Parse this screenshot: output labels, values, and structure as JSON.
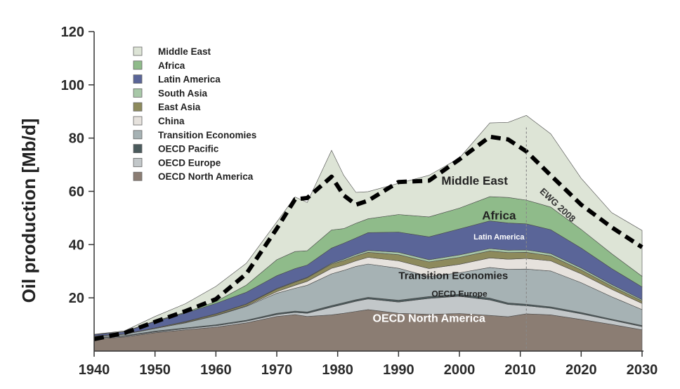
{
  "chart_data": {
    "type": "area",
    "stacked": true,
    "title": "",
    "xlabel": "",
    "ylabel": "Oil production [Mb/d]",
    "xlim": [
      1940,
      2030
    ],
    "ylim": [
      0,
      120
    ],
    "xticks": [
      1940,
      1950,
      1960,
      1970,
      1980,
      1990,
      2000,
      2010,
      2020,
      2030
    ],
    "yticks": [
      20,
      40,
      60,
      80,
      100,
      120
    ],
    "grid": false,
    "legend_position": "top-left",
    "x": [
      1940,
      1945,
      1950,
      1955,
      1960,
      1965,
      1970,
      1973,
      1975,
      1979,
      1981,
      1983,
      1985,
      1990,
      1995,
      2000,
      2005,
      2008,
      2011,
      2015,
      2020,
      2025,
      2030
    ],
    "series": [
      {
        "name": "OECD North America",
        "color": "#8b7d73",
        "values": [
          4.5,
          5.3,
          6.9,
          8.0,
          9.0,
          10.6,
          13.0,
          13.7,
          13.0,
          13.6,
          14.2,
          14.9,
          15.6,
          14.2,
          13.8,
          14.1,
          13.4,
          12.9,
          14.0,
          13.6,
          11.9,
          10.0,
          8.0
        ]
      },
      {
        "name": "OECD Europe",
        "color": "#c2c7c9",
        "values": [
          0.3,
          0.3,
          0.3,
          0.4,
          0.5,
          0.6,
          0.7,
          0.8,
          1.2,
          2.9,
          3.4,
          3.8,
          4.0,
          4.2,
          6.0,
          6.5,
          5.8,
          4.6,
          3.0,
          2.5,
          2.1,
          1.6,
          1.2
        ]
      },
      {
        "name": "OECD Pacific",
        "color": "#4a5a5c",
        "values": [
          0.2,
          0.2,
          0.3,
          0.3,
          0.4,
          0.4,
          0.5,
          0.5,
          0.5,
          0.6,
          0.6,
          0.6,
          0.6,
          0.7,
          0.7,
          0.7,
          0.7,
          0.6,
          0.6,
          0.5,
          0.5,
          0.4,
          0.4
        ]
      },
      {
        "name": "Transition Economies",
        "color": "#a6b2b4",
        "values": [
          0.5,
          0.5,
          1.0,
          1.9,
          3.4,
          5.2,
          7.5,
          8.6,
          10.0,
          11.9,
          12.1,
          12.5,
          12.5,
          12.0,
          7.5,
          8.1,
          11.5,
          12.6,
          13.2,
          13.5,
          11.2,
          8.4,
          6.0
        ]
      },
      {
        "name": "China",
        "color": "#e6e2dd",
        "values": [
          0.0,
          0.0,
          0.0,
          0.1,
          0.1,
          0.2,
          0.6,
          1.1,
          1.5,
          2.1,
          2.0,
          2.1,
          2.5,
          2.8,
          3.0,
          3.2,
          3.6,
          3.8,
          4.0,
          3.8,
          3.3,
          2.8,
          2.3
        ]
      },
      {
        "name": "East Asia",
        "color": "#8d8a5c",
        "values": [
          0.2,
          0.1,
          0.2,
          0.3,
          0.5,
          0.6,
          1.0,
          1.2,
          1.3,
          1.6,
          1.7,
          1.8,
          1.9,
          2.3,
          2.5,
          2.6,
          2.6,
          2.5,
          2.3,
          1.9,
          1.5,
          1.2,
          0.9
        ]
      },
      {
        "name": "South Asia",
        "color": "#a8c8a8",
        "values": [
          0.0,
          0.0,
          0.0,
          0.1,
          0.1,
          0.1,
          0.2,
          0.2,
          0.2,
          0.3,
          0.5,
          0.6,
          0.7,
          0.9,
          0.8,
          0.9,
          0.9,
          0.9,
          0.9,
          0.8,
          0.7,
          0.6,
          0.5
        ]
      },
      {
        "name": "Latin America",
        "color": "#5a6598",
        "values": [
          0.5,
          0.8,
          2.4,
          3.2,
          3.9,
          4.4,
          4.8,
          4.9,
          4.6,
          5.7,
          6.0,
          6.2,
          6.7,
          7.6,
          8.6,
          9.8,
          10.4,
          10.2,
          9.8,
          9.0,
          7.5,
          6.0,
          4.8
        ]
      },
      {
        "name": "Africa",
        "color": "#8fbb8a",
        "values": [
          0.0,
          0.1,
          0.2,
          0.3,
          0.7,
          2.7,
          6.0,
          6.4,
          5.4,
          6.8,
          5.5,
          5.5,
          5.2,
          6.6,
          7.5,
          7.8,
          9.1,
          9.6,
          8.9,
          8.5,
          7.0,
          5.6,
          4.0
        ]
      },
      {
        "name": "Middle East",
        "color": "#dde4d6",
        "values": [
          0.1,
          0.3,
          1.7,
          3.2,
          5.7,
          8.2,
          14.2,
          20.5,
          18.1,
          29.9,
          20.0,
          11.6,
          10.2,
          11.7,
          15.6,
          18.8,
          27.7,
          28.2,
          31.8,
          27.5,
          19.2,
          15.4,
          17.2
        ]
      }
    ],
    "reference_line": {
      "name": "EWG 2008",
      "x": [
        1940,
        1945,
        1950,
        1955,
        1960,
        1965,
        1970,
        1973,
        1975,
        1979,
        1981,
        1983,
        1985,
        1990,
        1995,
        2000,
        2005,
        2008,
        2011,
        2015,
        2020,
        2025,
        2030
      ],
      "y": [
        4.5,
        6.8,
        11.0,
        15.0,
        19.5,
        29.0,
        46.0,
        57.0,
        57.5,
        65.5,
        58.5,
        55.0,
        56.5,
        63.5,
        64.0,
        72.0,
        80.5,
        79.5,
        75.0,
        66.0,
        55.0,
        46.5,
        39.0
      ]
    },
    "vertical_marker_x": 2011,
    "annotations": [
      {
        "text": "Middle East",
        "x": 2002.5,
        "y": 62.5
      },
      {
        "text": "Africa",
        "x": 2006.5,
        "y": 49.5
      },
      {
        "text": "Latin America",
        "x": 2006.5,
        "y": 42
      },
      {
        "text": "Transition Economies",
        "x": 1999,
        "y": 27
      },
      {
        "text": "OECD Europe",
        "x": 2000,
        "y": 20.5
      },
      {
        "text": "OECD North America",
        "x": 1995,
        "y": 11
      },
      {
        "text": "EWG 2008",
        "x": 2015.8,
        "y": 54
      }
    ]
  }
}
